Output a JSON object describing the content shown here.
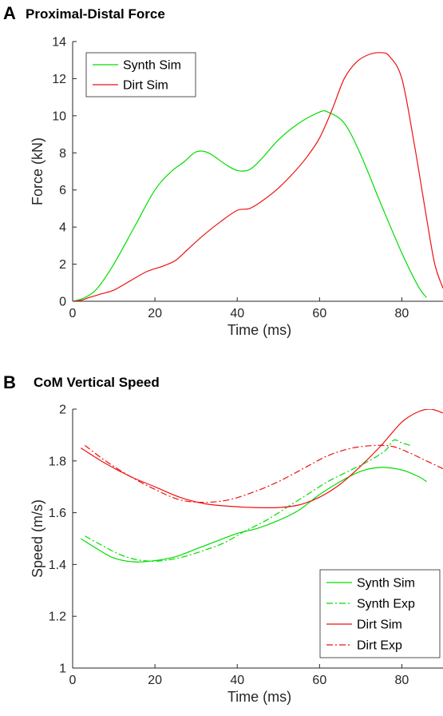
{
  "colors": {
    "synth": "#00dd00",
    "dirt": "#ee1111",
    "axis": "#262626"
  },
  "panels": {
    "a": {
      "letter": "A",
      "title": "Proximal-Distal Force"
    },
    "b": {
      "letter": "B",
      "title": "CoM Vertical Speed"
    }
  },
  "chart_data": [
    {
      "type": "line",
      "title": "Proximal-Distal Force",
      "xlabel": "Time (ms)",
      "ylabel": "Force (kN)",
      "xlim": [
        0,
        90
      ],
      "ylim": [
        0,
        14
      ],
      "xticks": [
        "0",
        "20",
        "40",
        "60",
        "80"
      ],
      "yticks": [
        "0",
        "2",
        "4",
        "6",
        "8",
        "10",
        "12",
        "14"
      ],
      "grid": false,
      "legend_position": "top-left",
      "series": [
        {
          "name": "Synth Sim",
          "color": "#00dd00",
          "style": "solid",
          "x": [
            0,
            3,
            6,
            10,
            15,
            20,
            24,
            27,
            30,
            33,
            37,
            40,
            43,
            46,
            50,
            55,
            60,
            62,
            66,
            70,
            75,
            80,
            84,
            86
          ],
          "y": [
            0,
            0.2,
            0.7,
            2.0,
            4.0,
            6.0,
            7.0,
            7.5,
            8.05,
            8.0,
            7.4,
            7.05,
            7.1,
            7.7,
            8.7,
            9.6,
            10.2,
            10.2,
            9.6,
            7.9,
            5.2,
            2.6,
            0.8,
            0.2
          ]
        },
        {
          "name": "Dirt Sim",
          "color": "#ee1111",
          "style": "solid",
          "x": [
            0,
            2,
            4,
            7,
            10,
            14,
            18,
            22,
            25,
            28,
            32,
            36,
            40,
            43,
            46,
            50,
            54,
            57,
            60,
            63,
            66,
            69,
            72,
            75,
            77,
            80,
            83,
            86,
            88,
            90
          ],
          "y": [
            0,
            0.05,
            0.2,
            0.4,
            0.6,
            1.1,
            1.6,
            1.9,
            2.2,
            2.8,
            3.6,
            4.3,
            4.9,
            5.0,
            5.4,
            6.1,
            7.0,
            7.8,
            8.8,
            10.3,
            12.0,
            12.9,
            13.3,
            13.4,
            13.2,
            12.0,
            8.5,
            4.5,
            2.0,
            0.7
          ]
        }
      ]
    },
    {
      "type": "line",
      "title": "CoM Vertical Speed",
      "xlabel": "Time (ms)",
      "ylabel": "Speed (m/s)",
      "xlim": [
        0,
        90
      ],
      "ylim": [
        1,
        2
      ],
      "xticks": [
        "0",
        "20",
        "40",
        "60",
        "80"
      ],
      "yticks": [
        "1",
        "1.2",
        "1.4",
        "1.6",
        "1.8",
        "2"
      ],
      "grid": false,
      "legend_position": "bottom-right",
      "series": [
        {
          "name": "Synth Sim",
          "color": "#00dd00",
          "style": "solid",
          "x": [
            2,
            6,
            10,
            15,
            20,
            25,
            30,
            35,
            40,
            45,
            50,
            55,
            60,
            65,
            70,
            75,
            80,
            84,
            86
          ],
          "y": [
            1.5,
            1.46,
            1.425,
            1.41,
            1.415,
            1.43,
            1.46,
            1.49,
            1.52,
            1.54,
            1.57,
            1.61,
            1.67,
            1.72,
            1.76,
            1.775,
            1.765,
            1.74,
            1.72
          ]
        },
        {
          "name": "Synth Exp",
          "color": "#00dd00",
          "style": "dashdot",
          "x": [
            3,
            7,
            12,
            17,
            22,
            27,
            32,
            37,
            42,
            47,
            52,
            57,
            62,
            67,
            72,
            76,
            78,
            80,
            82
          ],
          "y": [
            1.51,
            1.475,
            1.435,
            1.415,
            1.415,
            1.43,
            1.455,
            1.485,
            1.53,
            1.57,
            1.62,
            1.67,
            1.72,
            1.76,
            1.8,
            1.84,
            1.88,
            1.87,
            1.86
          ]
        },
        {
          "name": "Dirt Sim",
          "color": "#ee1111",
          "style": "solid",
          "x": [
            2,
            8,
            14,
            20,
            26,
            32,
            38,
            44,
            50,
            55,
            60,
            65,
            70,
            75,
            80,
            84,
            87,
            90
          ],
          "y": [
            1.85,
            1.79,
            1.74,
            1.7,
            1.66,
            1.635,
            1.625,
            1.62,
            1.62,
            1.63,
            1.66,
            1.71,
            1.78,
            1.86,
            1.95,
            1.99,
            2.0,
            1.985
          ]
        },
        {
          "name": "Dirt Exp",
          "color": "#ee1111",
          "style": "dashdot",
          "x": [
            3,
            8,
            14,
            20,
            26,
            32,
            38,
            44,
            50,
            56,
            62,
            68,
            74,
            78,
            82,
            86,
            90
          ],
          "y": [
            1.86,
            1.8,
            1.74,
            1.69,
            1.65,
            1.64,
            1.65,
            1.68,
            1.72,
            1.77,
            1.82,
            1.85,
            1.86,
            1.855,
            1.83,
            1.8,
            1.77
          ]
        }
      ]
    }
  ]
}
